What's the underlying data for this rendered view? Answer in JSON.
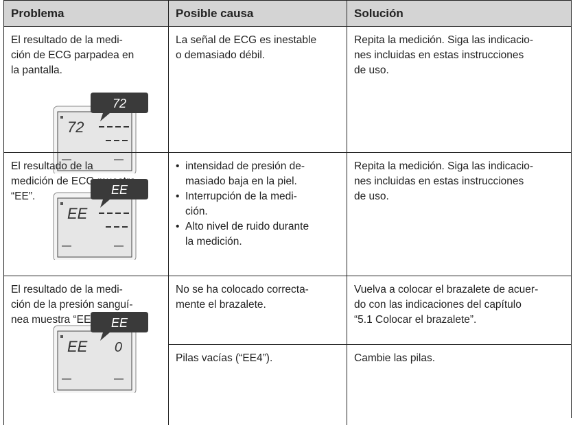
{
  "table": {
    "headers": [
      "Problema",
      "Posible causa",
      "Solución"
    ],
    "rows": [
      {
        "problem": [
          "El resultado de la medi-",
          "ción de ECG parpadea en",
          "la pantalla."
        ],
        "display": {
          "bubble": "72",
          "screen": "72"
        },
        "causes": [
          {
            "cause": [
              "La señal de ECG es inestable",
              "o demasiado débil."
            ],
            "solution": [
              "Repita la medición. Siga las indicacio-",
              "nes incluidas en estas instrucciones",
              "de uso."
            ]
          }
        ]
      },
      {
        "problem": [
          "El resultado de la",
          "medición de ECG muestra",
          "“EE”."
        ],
        "display": {
          "bubble": "EE",
          "screen": "EE"
        },
        "causes": [
          {
            "bullets": [
              [
                "intensidad de presión de-",
                "masiado baja en la piel."
              ],
              [
                "Interrupción de la medi-",
                "ción."
              ],
              [
                "Alto nivel de ruido durante",
                "la medición."
              ]
            ],
            "solution": [
              "Repita la medición. Siga las indicacio-",
              "nes incluidas en estas instrucciones",
              "de uso."
            ]
          }
        ]
      },
      {
        "problem": [
          "El resultado de la medi-",
          "ción de la presión sanguí-",
          "nea muestra “EE_0-4”."
        ],
        "display": {
          "bubble": "EE",
          "screen": "EE",
          "screen_right": "0"
        },
        "causes": [
          {
            "cause": [
              "No se ha colocado correcta-",
              "mente el brazalete."
            ],
            "solution": [
              "Vuelva a colocar el brazalete de acuer-",
              "do con las indicaciones del capítulo",
              "“5.1 Colocar el brazalete”."
            ]
          },
          {
            "cause": [
              "Pilas vacías (“EE4”)."
            ],
            "solution": [
              "Cambie las pilas."
            ]
          }
        ]
      }
    ]
  }
}
